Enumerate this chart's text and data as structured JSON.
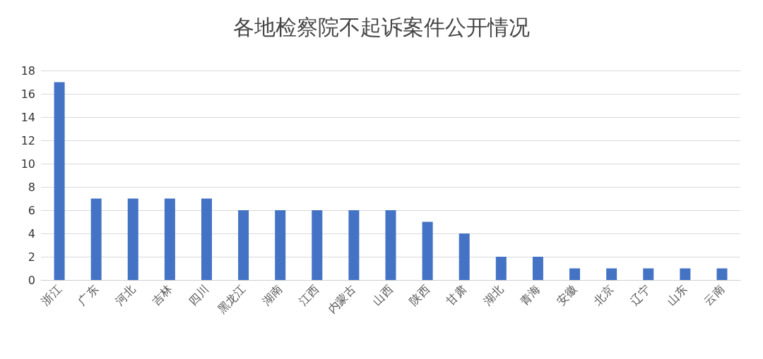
{
  "chart_data": {
    "type": "bar",
    "title": "各地检察院不起诉案件公开情况",
    "categories": [
      "浙江",
      "广东",
      "河北",
      "吉林",
      "四川",
      "黑龙江",
      "湖南",
      "江西",
      "内蒙古",
      "山西",
      "陕西",
      "甘肃",
      "湖北",
      "青海",
      "安徽",
      "北京",
      "辽宁",
      "山东",
      "云南"
    ],
    "values": [
      17,
      7,
      7,
      7,
      7,
      6,
      6,
      6,
      6,
      6,
      5,
      4,
      2,
      2,
      1,
      1,
      1,
      1,
      1
    ],
    "color": "#4472c4",
    "ylim": [
      0,
      18
    ],
    "yticks": [
      0,
      2,
      4,
      6,
      8,
      10,
      12,
      14,
      16,
      18
    ],
    "grid": "y"
  }
}
